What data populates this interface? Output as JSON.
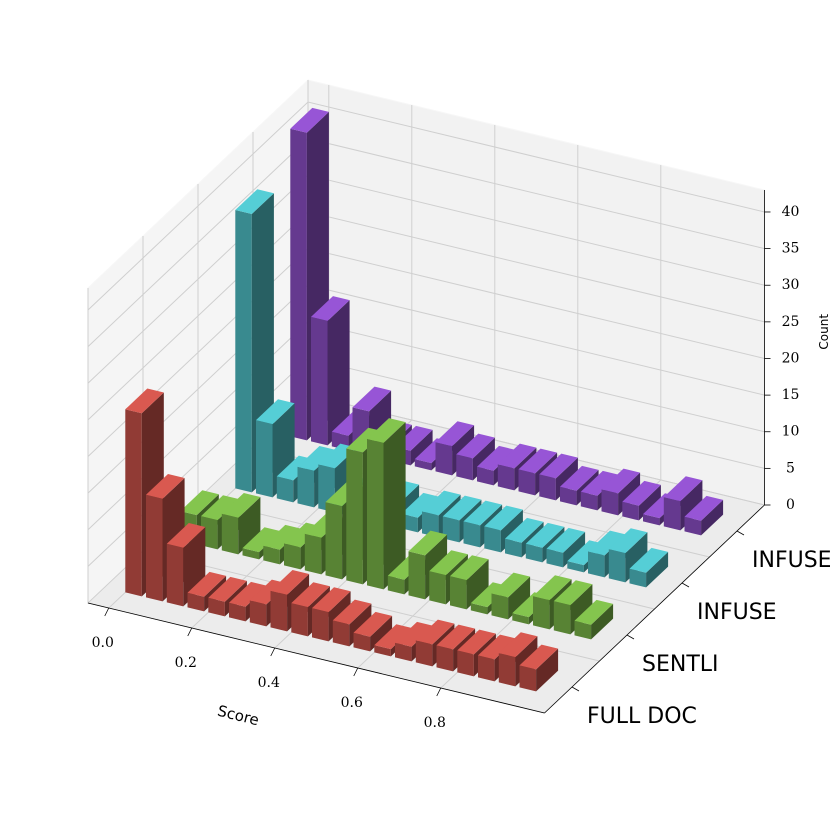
{
  "chart_data": {
    "type": "bar3d",
    "xlabel": "Score",
    "ylabel": "Count",
    "x": [
      0,
      0.05,
      0.1,
      0.15,
      0.2,
      0.25,
      0.3,
      0.35,
      0.4,
      0.45,
      0.5,
      0.55,
      0.6,
      0.65,
      0.7,
      0.75,
      0.8,
      0.85,
      0.9,
      0.95
    ],
    "series": [
      {
        "name": "FULL DOC",
        "color": "#c9524a",
        "values": [
          25,
          14,
          8,
          2,
          2,
          2,
          3,
          5,
          4,
          4,
          3,
          2,
          1,
          2,
          3,
          3,
          3,
          3,
          4,
          3
        ]
      },
      {
        "name": "SENTLI",
        "color": "#7ab648",
        "values": [
          4,
          4,
          5,
          1,
          2,
          3,
          5,
          10,
          18,
          20,
          2,
          6,
          4,
          4,
          1,
          3,
          1,
          4,
          4,
          2
        ]
      },
      {
        "name": "INFUSE",
        "color": "#4fbfc6",
        "values": [
          38,
          10,
          3,
          5,
          6,
          2,
          5,
          3,
          2,
          3,
          3,
          3,
          3,
          2,
          2,
          2,
          1,
          3,
          4,
          2
        ]
      },
      {
        "name": "INFUSE SUB",
        "color": "#8c4fc6",
        "values": [
          42,
          17,
          2,
          6,
          2,
          2,
          1,
          4,
          3,
          2,
          3,
          3,
          3,
          2,
          2,
          3,
          2,
          1,
          4,
          2
        ]
      }
    ],
    "xlim": [
      -0.05,
      1.05
    ],
    "xticks": [
      {
        "value": 0,
        "label": "0.0"
      },
      0.2,
      0.4,
      0.6,
      0.8
    ],
    "ylim": [
      0,
      43
    ],
    "yticks": [
      0,
      5,
      10,
      15,
      20,
      25,
      30,
      35,
      40
    ],
    "grid": true
  }
}
